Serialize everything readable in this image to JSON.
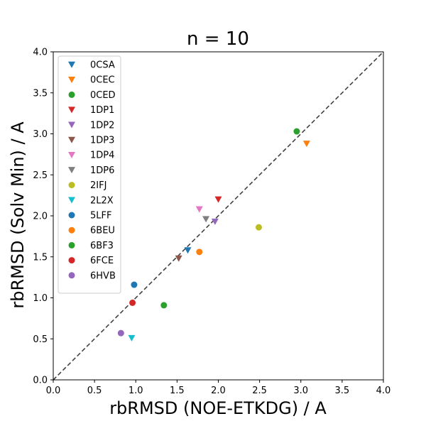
{
  "chart_data": {
    "type": "scatter",
    "title": "n = 10",
    "xlabel": "rbRMSD (NOE-ETKDG) / A",
    "ylabel": "rbRMSD (Solv Min) / A",
    "xlim": [
      0.0,
      4.0
    ],
    "ylim": [
      0.0,
      4.0
    ],
    "xticks": [
      "0.0",
      "0.5",
      "1.0",
      "1.5",
      "2.0",
      "2.5",
      "3.0",
      "3.5",
      "4.0"
    ],
    "yticks": [
      "0.0",
      "0.5",
      "1.0",
      "1.5",
      "2.0",
      "2.5",
      "3.0",
      "3.5",
      "4.0"
    ],
    "grid": false,
    "legend_position": "top-left",
    "reference_line": {
      "style": "dashed",
      "color": "#404040",
      "from": [
        0,
        0
      ],
      "to": [
        4,
        4
      ]
    },
    "series": [
      {
        "name": "0CSA",
        "marker": "triangle-down",
        "color": "#1f77b4",
        "points": [
          [
            1.63,
            1.58
          ]
        ]
      },
      {
        "name": "0CEC",
        "marker": "triangle-down",
        "color": "#ff7f0e",
        "points": [
          [
            3.07,
            2.88
          ]
        ]
      },
      {
        "name": "0CED",
        "marker": "circle",
        "color": "#2ca02c",
        "points": [
          [
            1.34,
            0.91
          ]
        ]
      },
      {
        "name": "1DP1",
        "marker": "triangle-down",
        "color": "#d62728",
        "points": [
          [
            2.0,
            2.2
          ]
        ]
      },
      {
        "name": "1DP2",
        "marker": "triangle-down",
        "color": "#9467bd",
        "points": [
          [
            1.96,
            1.93
          ]
        ]
      },
      {
        "name": "1DP3",
        "marker": "triangle-down",
        "color": "#8c564b",
        "points": [
          [
            1.52,
            1.48
          ]
        ]
      },
      {
        "name": "1DP4",
        "marker": "triangle-down",
        "color": "#e377c2",
        "points": [
          [
            1.77,
            2.08
          ]
        ]
      },
      {
        "name": "1DP6",
        "marker": "triangle-down",
        "color": "#7f7f7f",
        "points": [
          [
            1.85,
            1.96
          ]
        ]
      },
      {
        "name": "2IFJ",
        "marker": "circle",
        "color": "#bcbd22",
        "points": [
          [
            2.49,
            1.86
          ]
        ]
      },
      {
        "name": "2L2X",
        "marker": "triangle-down",
        "color": "#17becf",
        "points": [
          [
            0.95,
            0.51
          ]
        ]
      },
      {
        "name": "5LFF",
        "marker": "circle",
        "color": "#1f77b4",
        "points": [
          [
            0.98,
            1.16
          ]
        ]
      },
      {
        "name": "6BEU",
        "marker": "circle",
        "color": "#ff7f0e",
        "points": [
          [
            1.77,
            1.56
          ]
        ]
      },
      {
        "name": "6BF3",
        "marker": "circle",
        "color": "#2ca02c",
        "points": [
          [
            2.95,
            3.03
          ]
        ]
      },
      {
        "name": "6FCE",
        "marker": "circle",
        "color": "#d62728",
        "points": [
          [
            0.96,
            0.94
          ]
        ]
      },
      {
        "name": "6HVB",
        "marker": "circle",
        "color": "#9467bd",
        "points": [
          [
            0.82,
            0.57
          ]
        ]
      }
    ]
  }
}
